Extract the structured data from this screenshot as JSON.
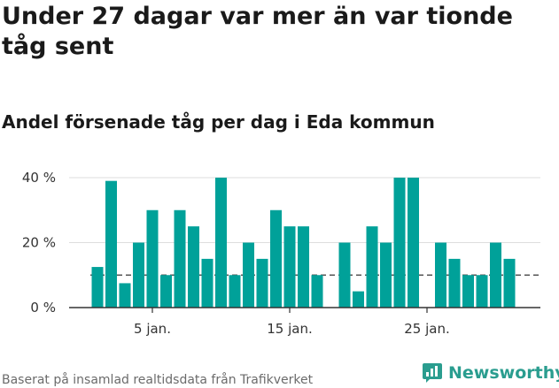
{
  "title": "Under 27 dagar var mer än var tionde tåg sent",
  "subtitle": "Andel försenade tåg per dag i Eda kommun",
  "footer": {
    "source": "Baserat på insamlad realtidsdata från Trafikverket",
    "brand": "Newsworthy"
  },
  "colors": {
    "bar": "#00a199",
    "grid": "#dddddd",
    "axis": "#333333",
    "reference_line": "#555555",
    "brand": "#2a9d8f"
  },
  "chart_data": {
    "type": "bar",
    "x": [
      1,
      2,
      3,
      4,
      5,
      6,
      7,
      8,
      9,
      10,
      11,
      12,
      13,
      14,
      15,
      16,
      17,
      18,
      19,
      20,
      21,
      22,
      23,
      24,
      25,
      26,
      27,
      28,
      29,
      30,
      31
    ],
    "values": [
      12.5,
      39,
      7.5,
      20,
      30,
      10,
      30,
      25,
      15,
      40,
      10,
      20,
      15,
      30,
      25,
      25,
      10,
      null,
      20,
      5,
      25,
      20,
      40,
      40,
      null,
      20,
      15,
      10,
      10,
      20,
      15
    ],
    "x_unit": "jan.",
    "x_ticks": [
      {
        "x": 5,
        "label": "5 jan."
      },
      {
        "x": 15,
        "label": "15 jan."
      },
      {
        "x": 25,
        "label": "25 jan."
      }
    ],
    "y_ticks": [
      {
        "y": 0,
        "label": "0 %"
      },
      {
        "y": 20,
        "label": "20 %"
      },
      {
        "y": 40,
        "label": "40 %"
      }
    ],
    "ylim": [
      0,
      40
    ],
    "reference_line": 10,
    "reference_line_style": "dashed",
    "grid": true
  }
}
